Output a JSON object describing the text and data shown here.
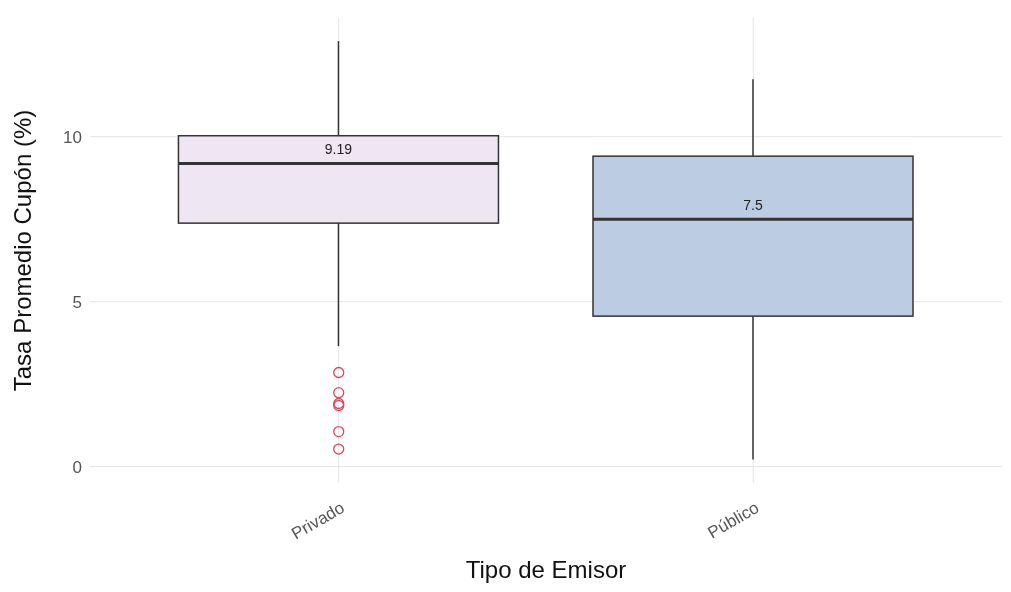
{
  "chart_data": {
    "type": "box",
    "xlabel": "Tipo de Emisor",
    "ylabel": "Tasa Promedio Cupón (%)",
    "categories": [
      "Privado",
      "Público"
    ],
    "colors": [
      "#ede6f2",
      "#b8c9e0"
    ],
    "color": "#d9485f",
    "boxes": [
      {
        "low": 3.65,
        "q1": 7.38,
        "median": 9.19,
        "q3": 10.03,
        "high": 12.9,
        "outliers": [
          2.85,
          2.24,
          1.91,
          1.85,
          1.06,
          0.53
        ]
      },
      {
        "low": 0.21,
        "q1": 4.56,
        "median": 7.5,
        "q3": 9.41,
        "high": 11.74
      }
    ],
    "annotations": [
      {
        "text": "9.19",
        "x": "Privado",
        "y": 9.19
      },
      {
        "text": "7.5",
        "x": "Público",
        "y": 7.5
      }
    ],
    "ylim": [
      -0.5,
      13.6
    ],
    "yticks": [
      0,
      5,
      10
    ],
    "grid": true
  }
}
